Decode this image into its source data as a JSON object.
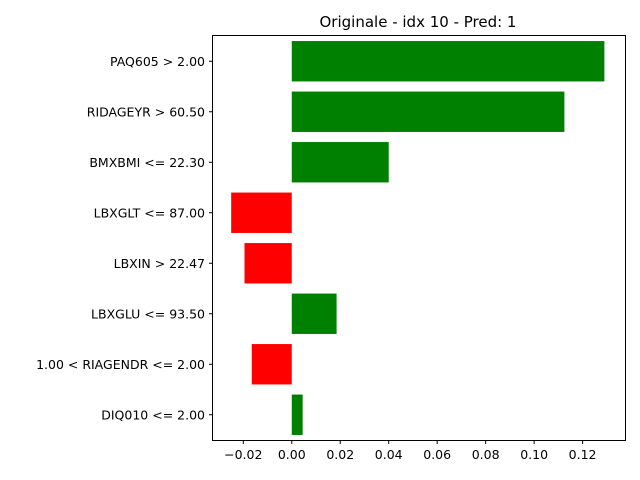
{
  "chart_data": {
    "type": "bar",
    "orientation": "horizontal",
    "title": "Originale - idx 10 - Pred: 1",
    "xlabel": "",
    "ylabel": "",
    "categories": [
      "PAQ605 > 2.00",
      "RIDAGEYR > 60.50",
      "BMXBMI <= 22.30",
      "LBXGLT <= 87.00",
      "LBXIN > 22.47",
      "LBXGLU <= 93.50",
      "1.00 < RIAGENDR <= 2.00",
      "DIQ010 <= 2.00"
    ],
    "values": [
      0.129,
      0.1125,
      0.04,
      -0.025,
      -0.0195,
      0.0185,
      -0.0165,
      0.0045
    ],
    "xlim": [
      -0.0325,
      0.1375
    ],
    "xticks": [
      "−0.02",
      "0.00",
      "0.02",
      "0.04",
      "0.06",
      "0.08",
      "0.10",
      "0.12"
    ],
    "xtick_values": [
      -0.02,
      0.0,
      0.02,
      0.04,
      0.06,
      0.08,
      0.1,
      0.12
    ],
    "grid": false,
    "colors": {
      "positive": "#008000",
      "negative": "#ff0000"
    }
  }
}
